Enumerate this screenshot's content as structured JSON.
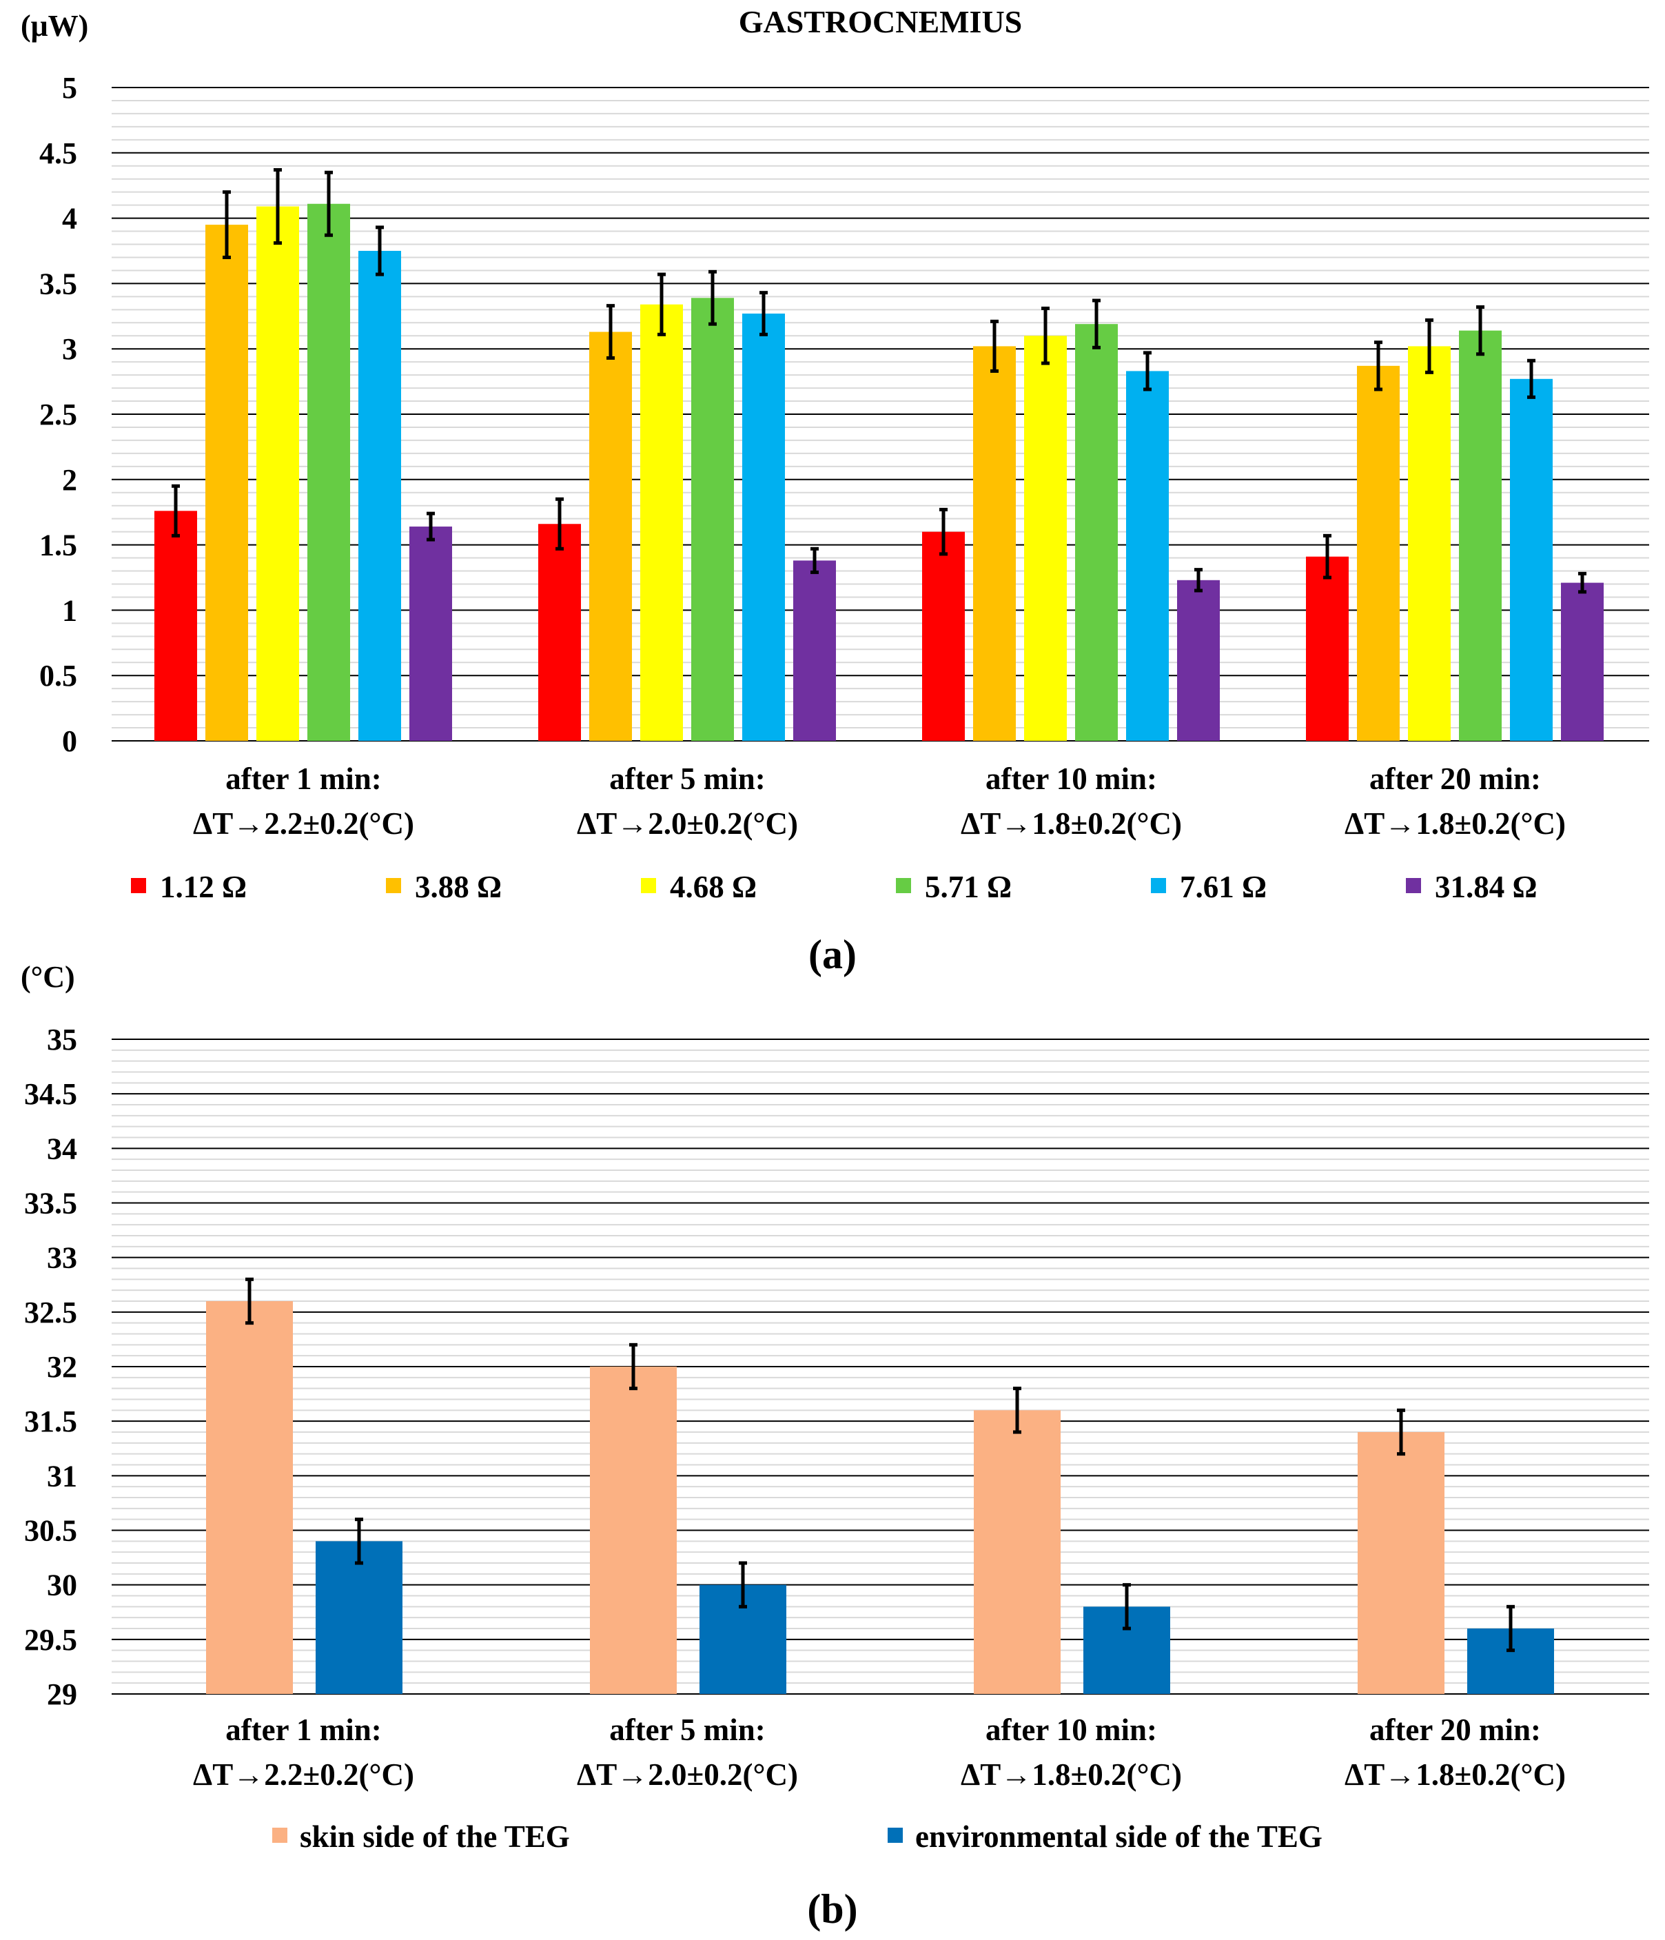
{
  "chart_data": [
    {
      "type": "bar",
      "title": "GASTROCNEMIUS",
      "ylabel": "(μW)",
      "panel_label": "(a)",
      "ylim": [
        0,
        5
      ],
      "yticks": [
        "0",
        "0.5",
        "1",
        "1.5",
        "2",
        "2.5",
        "3",
        "3.5",
        "4",
        "4.5",
        "5"
      ],
      "ytick_values": [
        0,
        0.5,
        1,
        1.5,
        2,
        2.5,
        3,
        3.5,
        4,
        4.5,
        5
      ],
      "categories": [
        {
          "line1": "after 1 min:",
          "line2": "ΔT→2.2±0.2(°C)"
        },
        {
          "line1": "after 5 min:",
          "line2": "ΔT→2.0±0.2(°C)"
        },
        {
          "line1": "after 10 min:",
          "line2": "ΔT→1.8±0.2(°C)"
        },
        {
          "line1": "after 20 min:",
          "line2": "ΔT→1.8±0.2(°C)"
        }
      ],
      "series": [
        {
          "name": "1.12 Ω",
          "color": "#ff0000",
          "values": [
            1.76,
            1.66,
            1.6,
            1.41
          ],
          "errors": [
            0.19,
            0.19,
            0.17,
            0.16
          ]
        },
        {
          "name": "3.88 Ω",
          "color": "#ffc000",
          "values": [
            3.95,
            3.13,
            3.02,
            2.87
          ],
          "errors": [
            0.25,
            0.2,
            0.19,
            0.18
          ]
        },
        {
          "name": "4.68 Ω",
          "color": "#ffff00",
          "values": [
            4.09,
            3.34,
            3.1,
            3.02
          ],
          "errors": [
            0.28,
            0.23,
            0.21,
            0.2
          ]
        },
        {
          "name": "5.71 Ω",
          "color": "#66cc44",
          "values": [
            4.11,
            3.39,
            3.19,
            3.14
          ],
          "errors": [
            0.24,
            0.2,
            0.18,
            0.18
          ]
        },
        {
          "name": "7.61 Ω",
          "color": "#00b0f0",
          "values": [
            3.75,
            3.27,
            2.83,
            2.77
          ],
          "errors": [
            0.18,
            0.16,
            0.14,
            0.14
          ]
        },
        {
          "name": "31.84 Ω",
          "color": "#7030a0",
          "values": [
            1.64,
            1.38,
            1.23,
            1.21
          ],
          "errors": [
            0.1,
            0.09,
            0.08,
            0.07
          ]
        }
      ],
      "grid": true,
      "legend_position": "bottom"
    },
    {
      "type": "bar",
      "ylabel": "(°C)",
      "panel_label": "(b)",
      "ylim": [
        29,
        35
      ],
      "yticks": [
        "29",
        "29.5",
        "30",
        "30.5",
        "31",
        "31.5",
        "32",
        "32.5",
        "33",
        "33.5",
        "34",
        "34.5",
        "35"
      ],
      "ytick_values": [
        29,
        29.5,
        30,
        30.5,
        31,
        31.5,
        32,
        32.5,
        33,
        33.5,
        34,
        34.5,
        35
      ],
      "categories": [
        {
          "line1": "after 1 min:",
          "line2": "ΔT→2.2±0.2(°C)"
        },
        {
          "line1": "after 5 min:",
          "line2": "ΔT→2.0±0.2(°C)"
        },
        {
          "line1": "after 10 min:",
          "line2": "ΔT→1.8±0.2(°C)"
        },
        {
          "line1": "after 20 min:",
          "line2": "ΔT→1.8±0.2(°C)"
        }
      ],
      "series": [
        {
          "name": "skin side of the TEG",
          "color": "#fbb183",
          "values": [
            32.6,
            32.0,
            31.6,
            31.4
          ],
          "errors": [
            0.2,
            0.2,
            0.2,
            0.2
          ]
        },
        {
          "name": "environmental side of the TEG",
          "color": "#0070b8",
          "values": [
            30.4,
            30.0,
            29.8,
            29.6
          ],
          "errors": [
            0.2,
            0.2,
            0.2,
            0.2
          ]
        }
      ],
      "grid": true,
      "legend_position": "bottom"
    }
  ]
}
